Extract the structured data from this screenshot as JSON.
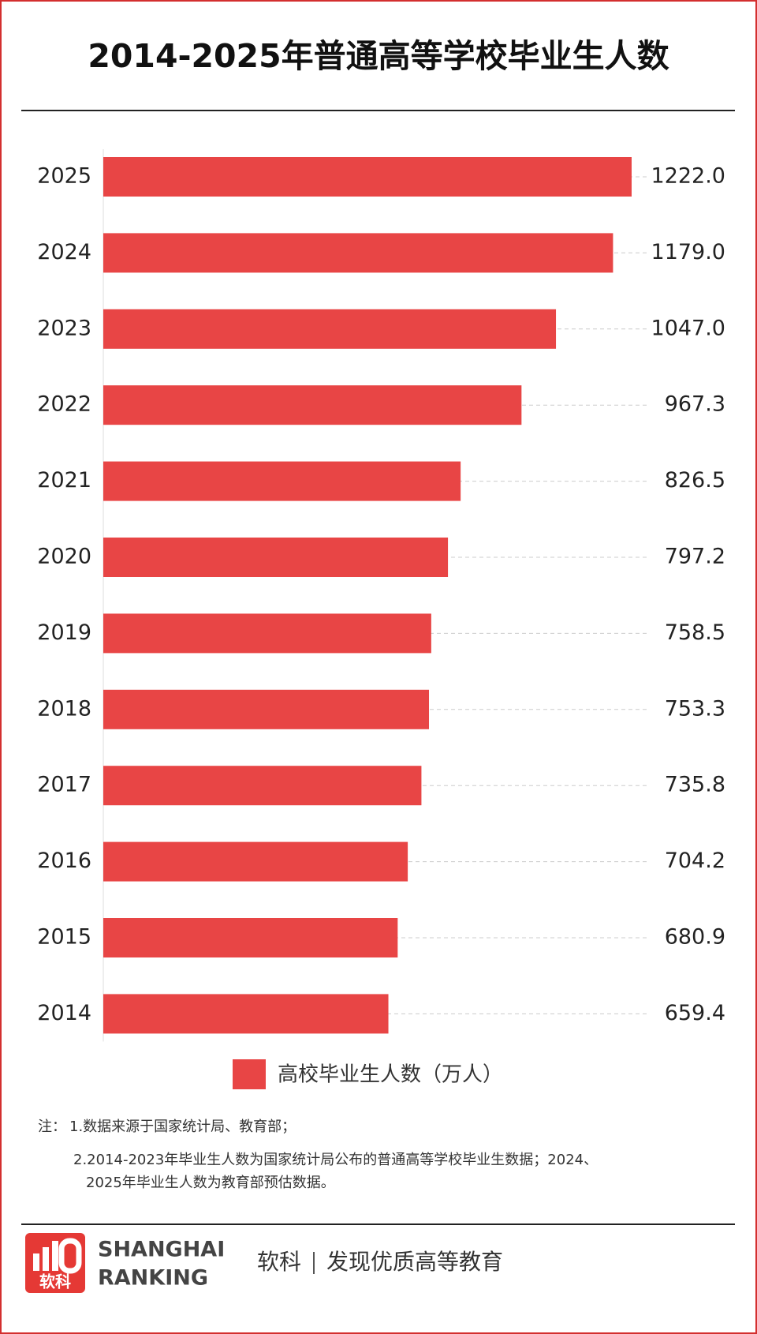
{
  "chart_data": {
    "type": "bar",
    "orientation": "horizontal",
    "title": "2014-2025年普通高等学校毕业生人数",
    "categories": [
      "2025",
      "2024",
      "2023",
      "2022",
      "2021",
      "2020",
      "2019",
      "2018",
      "2017",
      "2016",
      "2015",
      "2014"
    ],
    "series": [
      {
        "name": "高校毕业生人数（万人）",
        "color": "#e84545",
        "values": [
          1222.0,
          1179.0,
          1047.0,
          967.3,
          826.5,
          797.2,
          758.5,
          753.3,
          735.8,
          704.2,
          680.9,
          659.4
        ],
        "value_labels": [
          "1222.0",
          "1179.0",
          "1047.0",
          "967.3",
          "826.5",
          "797.2",
          "758.5",
          "753.3",
          "735.8",
          "704.2",
          "680.9",
          "659.4"
        ]
      }
    ]
  },
  "notes": {
    "label": "注：",
    "lines": [
      "1.数据来源于国家统计局、教育部；",
      "2.2014-2023年毕业生人数为国家统计局公布的普通高等学校毕业生数据；2024、",
      "2025年毕业生人数为教育部预估数据。"
    ]
  },
  "footer": {
    "logo_text": "软科",
    "brand": [
      "SHANGHAI",
      "RANKING"
    ],
    "slogan": [
      "软科",
      "发现优质高等教育"
    ]
  }
}
